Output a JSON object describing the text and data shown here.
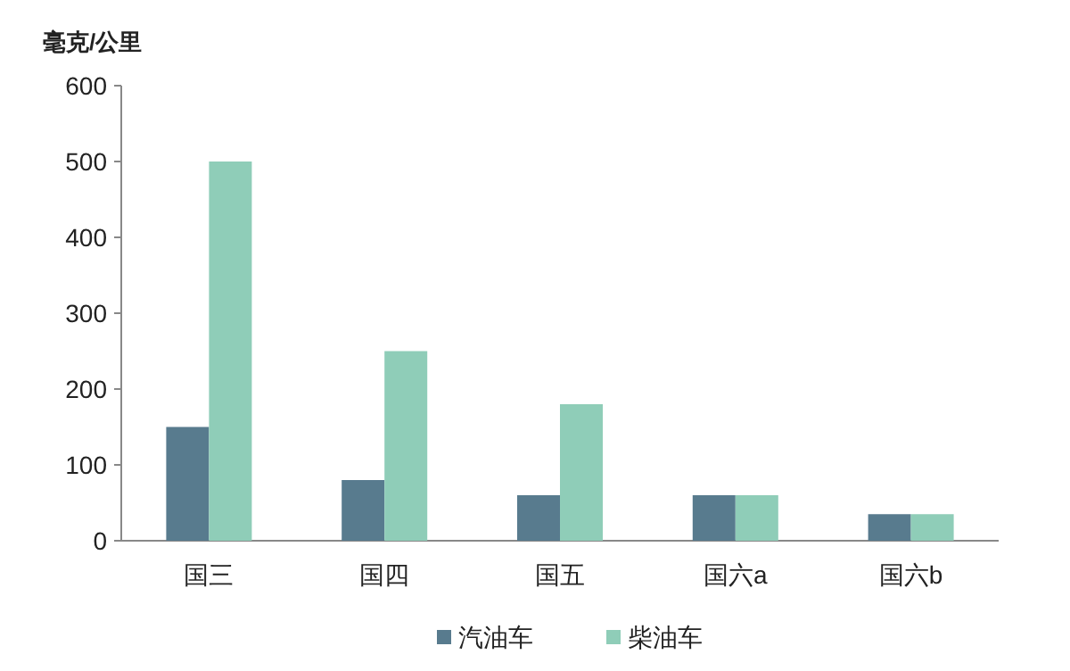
{
  "chart_data": {
    "type": "bar",
    "ylabel": "毫克/公里",
    "categories": [
      "国三",
      "国四",
      "国五",
      "国六a",
      "国六b"
    ],
    "series": [
      {
        "name": "汽油车",
        "color": "#587b8e",
        "values": [
          150,
          80,
          60,
          60,
          35
        ]
      },
      {
        "name": "柴油车",
        "color": "#8fcdb8",
        "values": [
          500,
          250,
          180,
          60,
          35
        ]
      }
    ],
    "ylim": [
      0,
      600
    ],
    "yticks": [
      0,
      100,
      200,
      300,
      400,
      500,
      600
    ],
    "legend": "bottom",
    "grid": false
  }
}
